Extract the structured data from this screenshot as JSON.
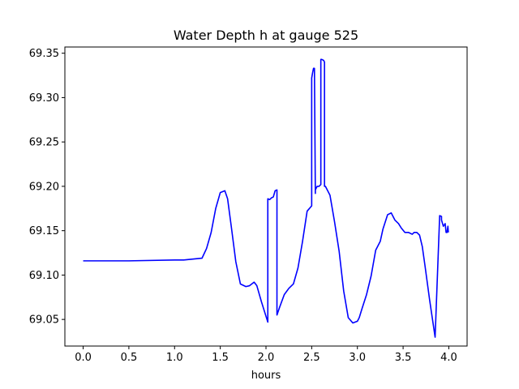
{
  "chart_data": {
    "type": "line",
    "title": "Water Depth h at gauge 525",
    "xlabel": "hours",
    "ylabel": "",
    "xlim": [
      -0.2,
      4.2
    ],
    "ylim": [
      69.02,
      69.357
    ],
    "xticks": [
      0.0,
      0.5,
      1.0,
      1.5,
      2.0,
      2.5,
      3.0,
      3.5,
      4.0
    ],
    "xtick_labels": [
      "0.0",
      "0.5",
      "1.0",
      "1.5",
      "2.0",
      "2.5",
      "3.0",
      "3.5",
      "4.0"
    ],
    "yticks": [
      69.05,
      69.1,
      69.15,
      69.2,
      69.25,
      69.3,
      69.35
    ],
    "ytick_labels": [
      "69.05",
      "69.10",
      "69.15",
      "69.20",
      "69.25",
      "69.30",
      "69.35"
    ],
    "grid": false,
    "series": [
      {
        "color": "#0000ff",
        "x": [
          0.0,
          0.5,
          1.0,
          1.1,
          1.3,
          1.35,
          1.4,
          1.45,
          1.5,
          1.55,
          1.58,
          1.62,
          1.67,
          1.72,
          1.78,
          1.82,
          1.87,
          1.9,
          1.95,
          2.02,
          2.02,
          2.04,
          2.06,
          2.08,
          2.1,
          2.12,
          2.12,
          2.15,
          2.2,
          2.25,
          2.3,
          2.35,
          2.4,
          2.45,
          2.5,
          2.5,
          2.51,
          2.52,
          2.53,
          2.54,
          2.54,
          2.56,
          2.58,
          2.6,
          2.6,
          2.61,
          2.63,
          2.64,
          2.64,
          2.65,
          2.7,
          2.75,
          2.8,
          2.85,
          2.9,
          2.95,
          3.0,
          3.02,
          3.05,
          3.1,
          3.15,
          3.2,
          3.25,
          3.28,
          3.33,
          3.37,
          3.41,
          3.45,
          3.48,
          3.52,
          3.56,
          3.6,
          3.62,
          3.65,
          3.68,
          3.71,
          3.74,
          3.79,
          3.85,
          3.9,
          3.92,
          3.92,
          3.94,
          3.96,
          3.97,
          3.98,
          3.99,
          3.995
        ],
        "y": [
          69.116,
          69.116,
          69.117,
          69.117,
          69.119,
          69.13,
          69.148,
          69.175,
          69.193,
          69.195,
          69.186,
          69.155,
          69.115,
          69.09,
          69.087,
          69.088,
          69.092,
          69.088,
          69.07,
          69.047,
          69.186,
          69.185,
          69.187,
          69.188,
          69.195,
          69.196,
          69.055,
          69.064,
          69.078,
          69.085,
          69.09,
          69.108,
          69.138,
          69.172,
          69.178,
          69.322,
          69.328,
          69.333,
          69.333,
          69.192,
          69.196,
          69.2,
          69.2,
          69.202,
          69.343,
          69.343,
          69.342,
          69.34,
          69.2,
          69.2,
          69.19,
          69.16,
          69.127,
          69.082,
          69.052,
          69.046,
          69.048,
          69.052,
          69.062,
          69.078,
          69.099,
          69.128,
          69.138,
          69.152,
          69.168,
          69.17,
          69.162,
          69.158,
          69.153,
          69.148,
          69.148,
          69.146,
          69.148,
          69.148,
          69.145,
          69.132,
          69.11,
          69.072,
          69.03,
          69.167,
          69.166,
          69.162,
          69.155,
          69.158,
          69.148,
          69.148,
          69.155,
          69.148
        ]
      }
    ]
  }
}
